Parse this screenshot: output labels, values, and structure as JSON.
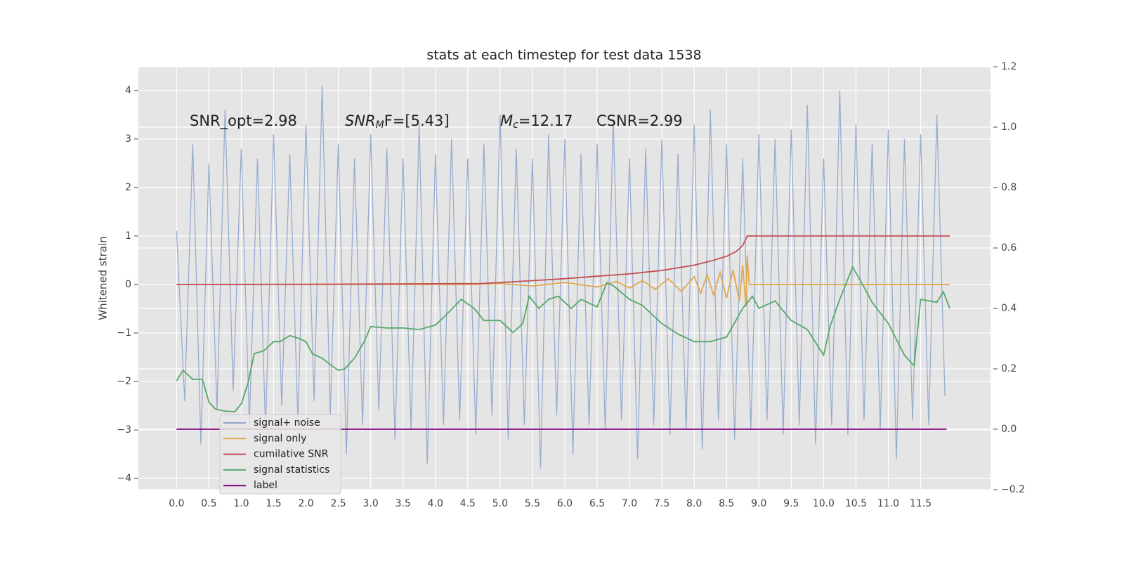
{
  "chart_data": {
    "type": "line",
    "title": "stats at each timestep for test data 1538",
    "ylabel": "Whitened strain",
    "annotations": [
      {
        "text": "SNR_opt=2.98"
      },
      {
        "main": "SNR",
        "sub": "M",
        "rest": "F=[5.43]"
      },
      {
        "main": "M",
        "sub": "c",
        "rest": "=12.17"
      },
      {
        "text": "CSNR=2.99"
      }
    ],
    "xlim": [
      -0.59,
      12.58
    ],
    "xticks": [
      {
        "value": 0,
        "label": "0.0"
      },
      0.5,
      {
        "value": 1,
        "label": "1.0"
      },
      1.5,
      {
        "value": 2,
        "label": "2.0"
      },
      2.5,
      {
        "value": 3,
        "label": "3.0"
      },
      3.5,
      {
        "value": 4,
        "label": "4.0"
      },
      4.5,
      {
        "value": 5,
        "label": "5.0"
      },
      5.5,
      {
        "value": 6,
        "label": "6.0"
      },
      6.5,
      {
        "value": 7,
        "label": "7.0"
      },
      7.5,
      {
        "value": 8,
        "label": "8.0"
      },
      8.5,
      {
        "value": 9,
        "label": "9.0"
      },
      9.5,
      {
        "value": 10,
        "label": "10.0"
      },
      10.5,
      {
        "value": 11,
        "label": "11.0"
      },
      11.5
    ],
    "ylim": [
      -4.23,
      4.49
    ],
    "yticks": [
      {
        "value": -4,
        "label": "−4"
      },
      {
        "value": -3,
        "label": "−3"
      },
      {
        "value": -2,
        "label": "−2"
      },
      {
        "value": -1,
        "label": "−1"
      },
      0,
      1,
      2,
      3,
      4
    ],
    "y2lim": [
      -0.2,
      1.2
    ],
    "y2ticks": [
      {
        "value": -0.2,
        "label": "−0.2"
      },
      {
        "value": 0,
        "label": "0.0"
      },
      0.2,
      0.4,
      0.6,
      0.8,
      {
        "value": 1,
        "label": "1.0"
      },
      1.2
    ],
    "grid": true,
    "legend": "lower left",
    "series": [
      {
        "name": "signal+ noise",
        "color": "#8fa5cc",
        "x": [
          0,
          0.125,
          0.25,
          0.375,
          0.5,
          0.625,
          0.75,
          0.875,
          1,
          1.125,
          1.25,
          1.375,
          1.5,
          1.625,
          1.75,
          1.875,
          2,
          2.125,
          2.25,
          2.375,
          2.5,
          2.625,
          2.75,
          2.875,
          3,
          3.125,
          3.25,
          3.375,
          3.5,
          3.625,
          3.75,
          3.875,
          4,
          4.125,
          4.25,
          4.375,
          4.5,
          4.625,
          4.75,
          4.875,
          5,
          5.125,
          5.25,
          5.375,
          5.5,
          5.625,
          5.75,
          5.875,
          6,
          6.125,
          6.25,
          6.375,
          6.5,
          6.625,
          6.75,
          6.875,
          7,
          7.125,
          7.25,
          7.375,
          7.5,
          7.625,
          7.75,
          7.875,
          8,
          8.125,
          8.25,
          8.375,
          8.5,
          8.625,
          8.75,
          8.875,
          9,
          9.125,
          9.25,
          9.375,
          9.5,
          9.625,
          9.75,
          9.875,
          10,
          10.125,
          10.25,
          10.375,
          10.5,
          10.625,
          10.75,
          10.875,
          11,
          11.125,
          11.25,
          11.375,
          11.5,
          11.625,
          11.75,
          11.875
        ],
        "values": [
          1.1,
          -2.4,
          2.9,
          -3.3,
          2.5,
          -2.6,
          3.6,
          -2.2,
          2.8,
          -2.9,
          2.6,
          -3.0,
          3.1,
          -2.5,
          2.7,
          -2.8,
          3.3,
          -2.4,
          4.1,
          -2.7,
          2.9,
          -3.5,
          2.6,
          -2.9,
          3.1,
          -2.6,
          2.8,
          -3.2,
          2.6,
          -3.0,
          3.3,
          -3.7,
          2.7,
          -2.9,
          3.0,
          -2.8,
          2.6,
          -3.1,
          2.9,
          -2.7,
          3.5,
          -3.2,
          2.8,
          -2.9,
          2.6,
          -3.8,
          3.1,
          -2.7,
          3.0,
          -3.5,
          2.7,
          -2.9,
          2.9,
          -3.0,
          3.4,
          -2.8,
          2.6,
          -3.6,
          2.8,
          -2.9,
          3.0,
          -3.1,
          2.7,
          -3.0,
          3.3,
          -3.4,
          3.6,
          -2.8,
          2.9,
          -3.2,
          2.6,
          -3.0,
          3.1,
          -2.8,
          3.0,
          -3.1,
          3.2,
          -2.9,
          3.7,
          -3.3,
          2.6,
          -2.9,
          4.0,
          -3.1,
          3.3,
          -2.8,
          2.9,
          -3.0,
          3.2,
          -3.6,
          3.0,
          -2.8,
          3.1,
          -2.9,
          3.5,
          -2.3
        ]
      },
      {
        "name": "signal only",
        "color": "#dda94f",
        "x": [
          0,
          4.5,
          5.0,
          5.5,
          6.0,
          6.5,
          6.8,
          7.0,
          7.2,
          7.4,
          7.6,
          7.8,
          8.0,
          8.1,
          8.2,
          8.3,
          8.4,
          8.5,
          8.6,
          8.7,
          8.75,
          8.8,
          8.82,
          8.85,
          9.0,
          11.95
        ],
        "values": [
          0,
          0,
          0.02,
          -0.03,
          0.04,
          -0.05,
          0.06,
          -0.07,
          0.08,
          -0.1,
          0.12,
          -0.14,
          0.16,
          -0.18,
          0.2,
          -0.22,
          0.25,
          -0.28,
          0.3,
          -0.34,
          0.4,
          -0.45,
          0.6,
          0,
          0,
          0
        ]
      },
      {
        "name": "cumilative SNR",
        "color": "#c44e52",
        "x": [
          0,
          1,
          2,
          3,
          4,
          4.7,
          5.0,
          5.5,
          6.0,
          6.5,
          7.0,
          7.5,
          8.0,
          8.25,
          8.5,
          8.65,
          8.75,
          8.82,
          9.0,
          11.95
        ],
        "values": [
          0,
          0.003,
          0.006,
          0.01,
          0.015,
          0.02,
          0.04,
          0.08,
          0.12,
          0.17,
          0.22,
          0.29,
          0.4,
          0.48,
          0.58,
          0.68,
          0.8,
          1.0,
          1.0,
          1.0
        ]
      },
      {
        "name": "signal statistics",
        "color": "#55a868",
        "axis": "y2",
        "x": [
          0,
          0.1,
          0.25,
          0.4,
          0.5,
          0.6,
          0.75,
          0.9,
          1.0,
          1.1,
          1.2,
          1.35,
          1.5,
          1.6,
          1.75,
          1.9,
          2.0,
          2.1,
          2.25,
          2.4,
          2.5,
          2.6,
          2.75,
          2.9,
          3.0,
          3.25,
          3.5,
          3.75,
          4.0,
          4.15,
          4.4,
          4.6,
          4.75,
          5.0,
          5.2,
          5.35,
          5.45,
          5.6,
          5.75,
          5.9,
          6.1,
          6.25,
          6.5,
          6.65,
          6.75,
          7.0,
          7.2,
          7.5,
          7.75,
          8.0,
          8.25,
          8.5,
          8.75,
          8.9,
          9.0,
          9.25,
          9.5,
          9.75,
          10.0,
          10.1,
          10.25,
          10.45,
          10.6,
          10.75,
          11.0,
          11.25,
          11.4,
          11.5,
          11.75,
          11.85,
          11.95
        ],
        "values": [
          0.16,
          0.195,
          0.165,
          0.165,
          0.09,
          0.067,
          0.06,
          0.058,
          0.084,
          0.15,
          0.25,
          0.26,
          0.29,
          0.29,
          0.31,
          0.3,
          0.29,
          0.25,
          0.235,
          0.21,
          0.195,
          0.2,
          0.235,
          0.29,
          0.34,
          0.335,
          0.335,
          0.33,
          0.345,
          0.375,
          0.43,
          0.4,
          0.36,
          0.36,
          0.32,
          0.35,
          0.44,
          0.4,
          0.43,
          0.44,
          0.4,
          0.43,
          0.405,
          0.485,
          0.475,
          0.43,
          0.41,
          0.35,
          0.315,
          0.29,
          0.29,
          0.305,
          0.4,
          0.44,
          0.4,
          0.425,
          0.36,
          0.33,
          0.245,
          0.34,
          0.43,
          0.537,
          0.48,
          0.42,
          0.35,
          0.245,
          0.21,
          0.43,
          0.42,
          0.455,
          0.4
        ]
      },
      {
        "name": "label",
        "color": "#800080",
        "axis": "y2",
        "x": [
          0,
          11.9
        ],
        "values": [
          0,
          0
        ]
      }
    ]
  }
}
